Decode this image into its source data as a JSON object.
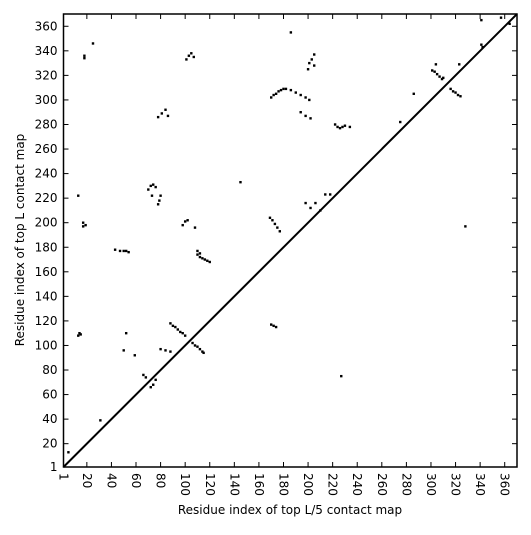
{
  "chart_data": {
    "type": "scatter",
    "x_label": "Residue index of top L/5 contact map",
    "y_label": "Residue index of top L contact map",
    "xlim": [
      1,
      370
    ],
    "ylim": [
      1,
      370
    ],
    "xticks": [
      1,
      20,
      40,
      60,
      80,
      100,
      120,
      140,
      160,
      180,
      200,
      220,
      240,
      260,
      280,
      300,
      320,
      340,
      360
    ],
    "yticks": [
      1,
      20,
      40,
      60,
      80,
      100,
      120,
      140,
      160,
      180,
      200,
      220,
      240,
      260,
      280,
      300,
      320,
      340,
      360
    ],
    "diagonal": {
      "x": [
        1,
        370
      ],
      "y": [
        1,
        370
      ],
      "color": "#000000"
    },
    "series": [
      {
        "color": "#000000",
        "x": [
          13,
          14,
          15,
          18,
          18,
          25,
          13,
          17,
          17,
          19,
          43,
          47,
          50,
          52,
          54,
          70,
          72,
          74,
          76,
          73,
          78,
          79,
          80,
          78,
          81,
          84,
          86,
          101,
          103,
          105,
          107,
          98,
          100,
          102,
          108,
          110,
          112,
          110,
          112,
          114,
          116,
          118,
          120,
          88,
          90,
          92,
          94,
          96,
          98,
          100,
          106,
          108,
          110,
          112,
          114,
          115,
          80,
          84,
          88,
          66,
          68,
          72,
          74,
          76,
          52,
          50,
          59,
          31,
          5,
          170,
          172,
          174,
          176,
          178,
          180,
          182,
          186,
          190,
          194,
          198,
          201,
          200,
          201,
          203,
          205,
          205,
          169,
          171,
          173,
          175,
          177,
          170,
          172,
          174,
          198,
          202,
          206,
          210,
          214,
          218,
          222,
          224,
          226,
          228,
          230,
          234,
          227,
          145,
          186,
          194,
          198,
          202,
          301,
          303,
          305,
          307,
          309,
          310,
          316,
          318,
          320,
          322,
          324,
          286,
          275,
          328,
          341,
          342,
          341,
          357,
          364,
          304,
          323
        ],
        "y": [
          108,
          110,
          109,
          334,
          336,
          346,
          222,
          197,
          200,
          198,
          178,
          177,
          177,
          177,
          176,
          227,
          230,
          231,
          229,
          222,
          215,
          218,
          222,
          286,
          289,
          292,
          287,
          333,
          336,
          338,
          335,
          198,
          201,
          202,
          196,
          177,
          175,
          174,
          172,
          171,
          170,
          169,
          168,
          118,
          116,
          115,
          113,
          111,
          110,
          108,
          102,
          100,
          99,
          97,
          95,
          94,
          97,
          96,
          95,
          76,
          74,
          66,
          68,
          72,
          110,
          96,
          92,
          39,
          13,
          302,
          304,
          305,
          307,
          308,
          309,
          309,
          308,
          306,
          304,
          302,
          300,
          325,
          330,
          333,
          337,
          328,
          204,
          202,
          199,
          196,
          193,
          117,
          116,
          115,
          216,
          212,
          216,
          210,
          223,
          223,
          280,
          278,
          277,
          278,
          279,
          278,
          75,
          233,
          355,
          290,
          287,
          285,
          324,
          323,
          321,
          319,
          317,
          318,
          309,
          307,
          306,
          304,
          303,
          305,
          282,
          197,
          345,
          343,
          365,
          367,
          362,
          329,
          329
        ]
      }
    ]
  }
}
